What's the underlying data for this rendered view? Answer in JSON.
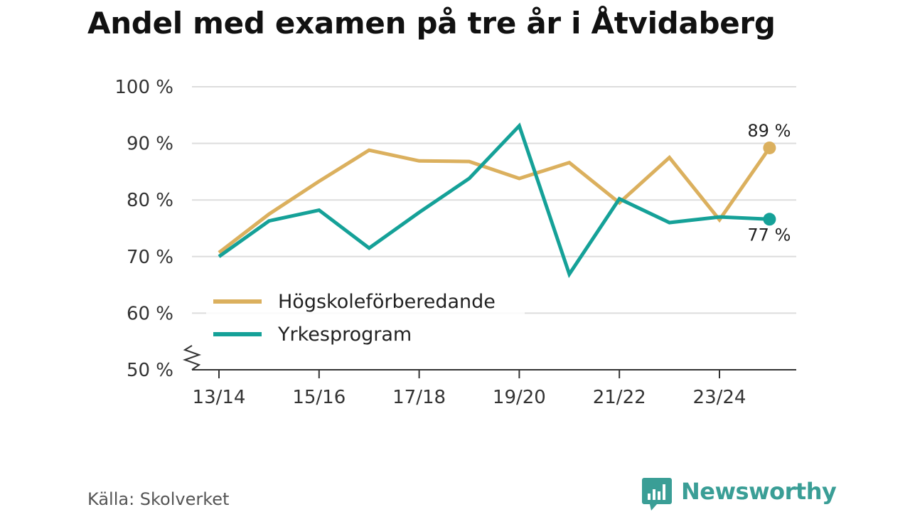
{
  "header": {
    "title": "Andel med examen på tre år i Åtvidaberg"
  },
  "footer": {
    "source": "Källa: Skolverket",
    "brand": "Newsworthy"
  },
  "colors": {
    "series1": "#dbb05e",
    "series2": "#15a198",
    "grid": "#dddddd",
    "axis": "#333333",
    "brand": "#3a9e96"
  },
  "chart_data": {
    "type": "line",
    "title": "Andel med examen på tre år i Åtvidaberg",
    "xlabel": "",
    "ylabel": "",
    "ylim": [
      50,
      100
    ],
    "yticks": [
      50,
      60,
      70,
      80,
      90,
      100
    ],
    "ytick_labels": [
      "50 %",
      "60 %",
      "70 %",
      "80 %",
      "90 %",
      "100 %"
    ],
    "x": [
      "13/14",
      "14/15",
      "15/16",
      "16/17",
      "17/18",
      "18/19",
      "19/20",
      "20/21",
      "21/22",
      "22/23",
      "23/24",
      "24/25"
    ],
    "xtick_labels": [
      "13/14",
      "15/16",
      "17/18",
      "19/20",
      "21/22",
      "23/24"
    ],
    "legend_position": "center-left",
    "grid": true,
    "series": [
      {
        "name": "Högskoleförberedande",
        "color": "#dbb05e",
        "values": [
          70.7,
          77.5,
          83.3,
          88.8,
          86.9,
          86.8,
          83.8,
          86.6,
          79.5,
          87.5,
          76.5,
          89.2
        ],
        "end_label": "89 %"
      },
      {
        "name": "Yrkesprogram",
        "color": "#15a198",
        "values": [
          70.0,
          76.3,
          78.2,
          71.5,
          77.8,
          83.8,
          93.1,
          66.9,
          80.2,
          76.0,
          77.0,
          76.6
        ],
        "end_label": "77 %"
      }
    ]
  }
}
